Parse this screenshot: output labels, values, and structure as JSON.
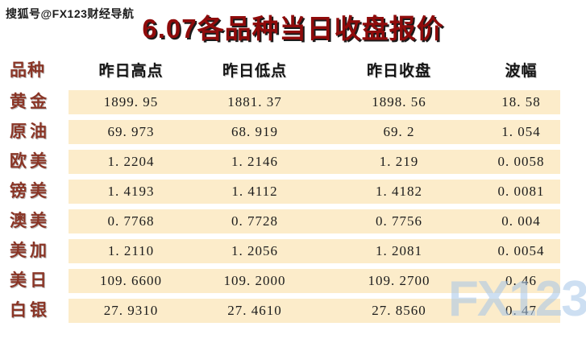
{
  "page": {
    "watermark_top": "搜狐号@FX123财经导航",
    "title": "6.07各品种当日收盘报价",
    "brand_watermark": "FX123"
  },
  "table": {
    "headers": {
      "product": "品种",
      "high": "昨日高点",
      "low": "昨日低点",
      "close": "昨日收盘",
      "range": "波幅"
    },
    "rows": [
      {
        "name": "黄金",
        "high": "1899. 95",
        "low": "1881. 37",
        "close": "1898. 56",
        "range": "18. 58"
      },
      {
        "name": "原油",
        "high": "69. 973",
        "low": "68. 919",
        "close": "69. 2",
        "range": "1. 054"
      },
      {
        "name": "欧美",
        "high": "1. 2204",
        "low": "1. 2146",
        "close": "1. 219",
        "range": "0. 0058"
      },
      {
        "name": "镑美",
        "high": "1. 4193",
        "low": "1. 4112",
        "close": "1. 4182",
        "range": "0. 0081"
      },
      {
        "name": "澳美",
        "high": "0. 7768",
        "low": "0. 7728",
        "close": "0. 7756",
        "range": "0. 004"
      },
      {
        "name": "美加",
        "high": "1. 2110",
        "low": "1. 2056",
        "close": "1. 2081",
        "range": "0. 0054"
      },
      {
        "name": "美日",
        "high": "109. 6600",
        "low": "109. 2000",
        "close": "109. 2700",
        "range": "0. 46"
      },
      {
        "name": "白银",
        "high": "27. 9310",
        "low": "27. 4610",
        "close": "27. 8560",
        "range": "0. 47"
      }
    ]
  },
  "colors": {
    "title": "#8f0b0b",
    "row_label": "#8a3526",
    "stripe": "#fcecca",
    "brand_watermark": "#a4c5e7"
  }
}
